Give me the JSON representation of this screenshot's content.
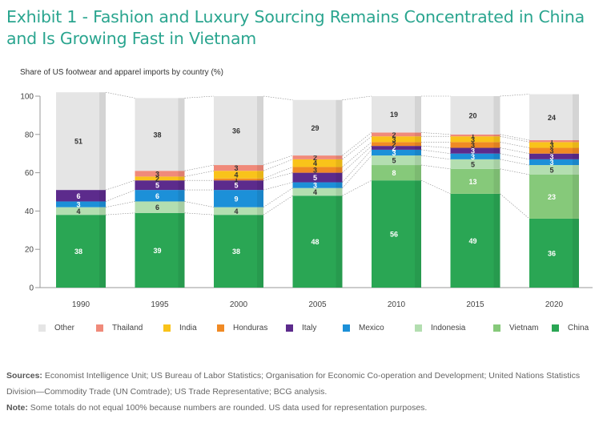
{
  "title": "Exhibit 1 - Fashion and Luxury Sourcing Remains Concentrated in China and Is Growing Fast in Vietnam",
  "footer": {
    "sources_label": "Sources:",
    "sources_text": "Economist Intelligence Unit; US Bureau of Labor Statistics; Organisation for Economic Co-operation and Development; United Nations Statistics Division—Commodity Trade (UN Comtrade); US Trade Representative; BCG analysis.",
    "note_label": "Note:",
    "note_text": "Some totals do not equal 100% because numbers are rounded. US data used for representation purposes."
  },
  "chart_data": {
    "type": "bar",
    "stacked": true,
    "title": "Share of US footwear and apparel imports by country (%)",
    "xlabel": "",
    "ylabel": "",
    "ylim": [
      0,
      100
    ],
    "yticks": [
      0,
      20,
      40,
      60,
      80,
      100
    ],
    "categories": [
      "1990",
      "1995",
      "2000",
      "2005",
      "2010",
      "2015",
      "2020"
    ],
    "series": [
      {
        "name": "China",
        "color": "#2aa654",
        "values": [
          38,
          39,
          38,
          48,
          56,
          49,
          36
        ]
      },
      {
        "name": "Vietnam",
        "color": "#86c97a",
        "values": [
          null,
          null,
          null,
          null,
          8,
          13,
          23
        ]
      },
      {
        "name": "Indonesia",
        "color": "#b3deb0",
        "values": [
          4,
          6,
          4,
          4,
          5,
          5,
          5
        ]
      },
      {
        "name": "Mexico",
        "color": "#1c90d8",
        "values": [
          3,
          6,
          9,
          3,
          3,
          3,
          3
        ]
      },
      {
        "name": "Italy",
        "color": "#5c2b8c",
        "values": [
          6,
          5,
          5,
          5,
          2,
          3,
          3
        ]
      },
      {
        "name": "Honduras",
        "color": "#f08a24",
        "values": [
          null,
          null,
          1,
          3,
          2,
          3,
          3
        ]
      },
      {
        "name": "India",
        "color": "#f9c31a",
        "values": [
          null,
          2,
          4,
          4,
          3,
          3,
          3
        ]
      },
      {
        "name": "Thailand",
        "color": "#f08a7a",
        "values": [
          null,
          3,
          3,
          2,
          2,
          1,
          1
        ]
      },
      {
        "name": "Other",
        "color": "#e5e5e5",
        "values": [
          51,
          38,
          36,
          29,
          19,
          20,
          24
        ]
      }
    ],
    "legend_order": [
      "Other",
      "Thailand",
      "India",
      "Honduras",
      "Italy",
      "Mexico",
      "Indonesia",
      "Vietnam",
      "China"
    ]
  }
}
